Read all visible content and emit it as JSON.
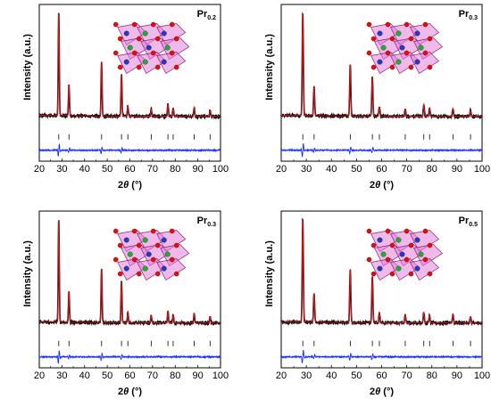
{
  "figure": {
    "colors": {
      "observed": "#000000",
      "calculated": "#e8141b",
      "difference": "#1a2cff",
      "bragg": "#000000",
      "crystal_fill": "#e27fd9",
      "crystal_edge": "#8b1f74",
      "atom_o": "#e01010",
      "atom_a": "#2438c8",
      "atom_b": "#1fae2f"
    },
    "icon": "crystal-structure-icon"
  },
  "chart_data": [
    {
      "type": "line",
      "sample_label": "Pr",
      "sample_sub": "0.2",
      "xlabel": "2θ (°)",
      "ylabel": "Intensity (a.u.)",
      "xlim": [
        20,
        100
      ],
      "xticks": [
        "20",
        "30",
        "40",
        "50",
        "60",
        "70",
        "80",
        "90",
        "100"
      ],
      "peaks": [
        [
          28.6,
          100
        ],
        [
          33.1,
          30
        ],
        [
          47.5,
          52
        ],
        [
          56.3,
          40
        ],
        [
          59.1,
          10
        ],
        [
          69.4,
          7
        ],
        [
          76.8,
          12
        ],
        [
          79.1,
          8
        ],
        [
          88.4,
          9
        ],
        [
          95.4,
          6
        ]
      ],
      "bragg_positions": [
        28.6,
        33.1,
        47.5,
        56.3,
        59.1,
        69.4,
        76.8,
        79.1,
        88.4,
        95.4
      ],
      "series": [
        {
          "values_kind": "observed"
        },
        {
          "values_kind": "calculated"
        },
        {
          "values_kind": "difference"
        }
      ]
    },
    {
      "type": "line",
      "sample_label": "Pr",
      "sample_sub": "0.3",
      "xlabel": "2θ (°)",
      "ylabel": "Intensity (a.u.)",
      "xlim": [
        20,
        100
      ],
      "xticks": [
        "20",
        "30",
        "40",
        "50",
        "60",
        "70",
        "80",
        "90",
        "100"
      ],
      "peaks": [
        [
          28.6,
          100
        ],
        [
          33.1,
          28
        ],
        [
          47.5,
          50
        ],
        [
          56.3,
          38
        ],
        [
          59.1,
          9
        ],
        [
          69.4,
          7
        ],
        [
          76.8,
          11
        ],
        [
          79.1,
          8
        ],
        [
          88.4,
          8
        ],
        [
          95.4,
          6
        ]
      ],
      "bragg_positions": [
        28.6,
        33.1,
        47.5,
        56.3,
        59.1,
        69.4,
        76.8,
        79.1,
        88.4,
        95.4
      ],
      "series": [
        {
          "values_kind": "observed"
        },
        {
          "values_kind": "calculated"
        },
        {
          "values_kind": "difference"
        }
      ]
    },
    {
      "type": "line",
      "sample_label": "Pr",
      "sample_sub": "0.3",
      "xlabel": "2θ (°)",
      "ylabel": "Intensity (a.u.)",
      "xlim": [
        20,
        100
      ],
      "xticks": [
        "20",
        "30",
        "40",
        "50",
        "60",
        "70",
        "80",
        "90",
        "100"
      ],
      "peaks": [
        [
          28.6,
          100
        ],
        [
          33.1,
          30
        ],
        [
          47.5,
          52
        ],
        [
          56.3,
          40
        ],
        [
          59.1,
          10
        ],
        [
          69.4,
          7
        ],
        [
          76.8,
          12
        ],
        [
          79.1,
          8
        ],
        [
          88.4,
          9
        ],
        [
          95.4,
          6
        ]
      ],
      "bragg_positions": [
        28.6,
        33.1,
        47.5,
        56.3,
        59.1,
        69.4,
        76.8,
        79.1,
        88.4,
        95.4
      ],
      "series": [
        {
          "values_kind": "observed"
        },
        {
          "values_kind": "calculated"
        },
        {
          "values_kind": "difference"
        }
      ]
    },
    {
      "type": "line",
      "sample_label": "Pr",
      "sample_sub": "0.5",
      "xlabel": "2θ (°)",
      "ylabel": "Intensity (a.u.)",
      "xlim": [
        20,
        100
      ],
      "xticks": [
        "20",
        "30",
        "40",
        "50",
        "60",
        "70",
        "80",
        "90",
        "100"
      ],
      "peaks": [
        [
          28.6,
          100
        ],
        [
          33.1,
          28
        ],
        [
          47.5,
          52
        ],
        [
          56.3,
          45
        ],
        [
          59.1,
          10
        ],
        [
          69.4,
          7
        ],
        [
          76.8,
          10
        ],
        [
          79.1,
          7
        ],
        [
          88.4,
          8
        ],
        [
          95.4,
          6
        ]
      ],
      "bragg_positions": [
        28.6,
        33.1,
        47.5,
        56.3,
        59.1,
        69.4,
        76.8,
        79.1,
        88.4,
        95.4
      ],
      "series": [
        {
          "values_kind": "observed"
        },
        {
          "values_kind": "calculated"
        },
        {
          "values_kind": "difference"
        }
      ]
    }
  ]
}
